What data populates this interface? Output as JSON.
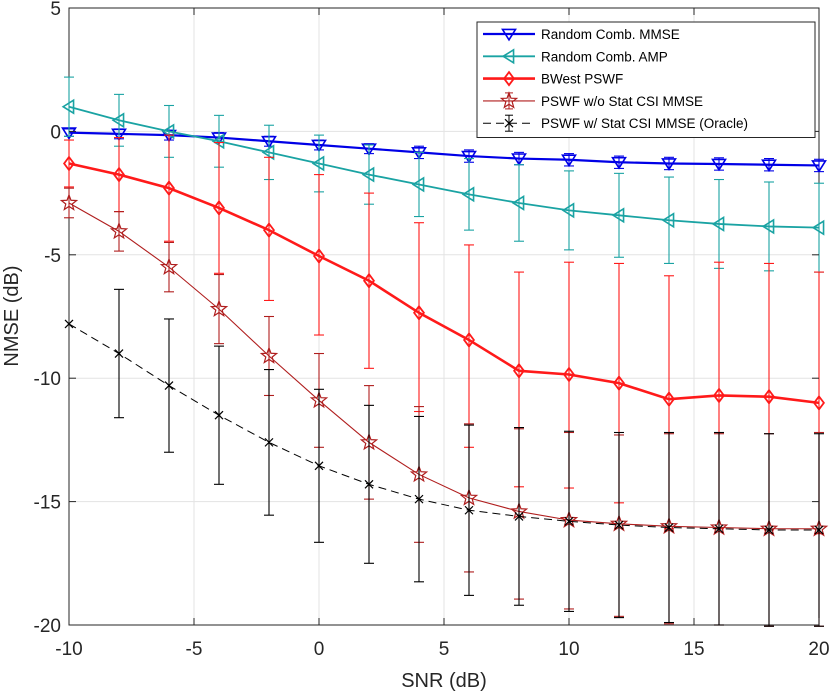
{
  "chart_data": {
    "type": "line",
    "title": "",
    "xlabel": "SNR (dB)",
    "ylabel": "NMSE (dB)",
    "xlim": [
      -10,
      20
    ],
    "ylim": [
      -20,
      5
    ],
    "xticks": [
      -10,
      -5,
      0,
      5,
      10,
      15,
      20
    ],
    "yticks": [
      -20,
      -15,
      -10,
      -5,
      0,
      5
    ],
    "grid": true,
    "legend_position": "top-right",
    "x": [
      -10,
      -8,
      -6,
      -4,
      -2,
      0,
      2,
      4,
      6,
      8,
      10,
      12,
      14,
      16,
      18,
      20
    ],
    "series": [
      {
        "name": "Random Comb. MMSE",
        "color": "#0000e6",
        "marker": "triangle-down",
        "line_style": "solid",
        "values": [
          -0.05,
          -0.1,
          -0.15,
          -0.25,
          -0.4,
          -0.55,
          -0.7,
          -0.85,
          -1.0,
          -1.1,
          -1.15,
          -1.25,
          -1.3,
          -1.32,
          -1.35,
          -1.38
        ],
        "err_low": [
          0.15,
          0.2,
          0.2,
          0.2,
          0.2,
          0.2,
          0.2,
          0.25,
          0.25,
          0.25,
          0.25,
          0.25,
          0.25,
          0.25,
          0.25,
          0.25
        ],
        "err_high": [
          0.15,
          0.2,
          0.2,
          0.2,
          0.2,
          0.2,
          0.2,
          0.25,
          0.25,
          0.25,
          0.25,
          0.25,
          0.25,
          0.25,
          0.25,
          0.25
        ]
      },
      {
        "name": "Random Comb. AMP",
        "color": "#1aa3a3",
        "marker": "triangle-left",
        "line_style": "solid",
        "values": [
          1.0,
          0.45,
          0.0,
          -0.4,
          -0.85,
          -1.3,
          -1.75,
          -2.15,
          -2.55,
          -2.9,
          -3.2,
          -3.4,
          -3.6,
          -3.75,
          -3.85,
          -3.9
        ],
        "err_low": [
          1.2,
          1.05,
          1.05,
          1.05,
          1.1,
          1.15,
          1.2,
          1.3,
          1.45,
          1.55,
          1.6,
          1.7,
          1.75,
          1.8,
          1.8,
          1.8
        ],
        "err_high": [
          1.2,
          1.05,
          1.05,
          1.05,
          1.1,
          1.15,
          1.2,
          1.3,
          1.45,
          1.55,
          1.6,
          1.7,
          1.75,
          1.8,
          1.8,
          1.8
        ]
      },
      {
        "name": "BWest PSWF",
        "color": "#ff1a1a",
        "marker": "diamond",
        "line_style": "solid",
        "values": [
          -1.3,
          -1.75,
          -2.3,
          -3.1,
          -4.0,
          -5.05,
          -6.05,
          -7.35,
          -8.45,
          -9.7,
          -9.85,
          -10.2,
          -10.85,
          -10.7,
          -10.75,
          -11.0
        ],
        "err_low": [
          0.95,
          1.5,
          2.15,
          2.65,
          2.85,
          3.2,
          3.55,
          4.0,
          4.35,
          4.7,
          4.6,
          4.85,
          5.25,
          5.4,
          5.4,
          5.3
        ],
        "err_high": [
          0.95,
          1.5,
          2.15,
          2.65,
          2.95,
          3.3,
          3.55,
          3.65,
          3.85,
          4.0,
          4.55,
          4.85,
          5.0,
          5.4,
          5.4,
          5.3
        ]
      },
      {
        "name": "PSWF w/o Stat CSI MMSE",
        "color": "#b01e1e",
        "marker": "star",
        "line_style": "solid",
        "values": [
          -2.9,
          -4.05,
          -5.5,
          -7.2,
          -9.1,
          -10.9,
          -12.6,
          -13.9,
          -14.85,
          -15.4,
          -15.75,
          -15.9,
          -16.0,
          -16.05,
          -16.1,
          -16.1
        ],
        "err_low": [
          0.6,
          0.8,
          1.0,
          1.4,
          1.6,
          1.9,
          2.3,
          2.75,
          3.0,
          3.55,
          3.6,
          3.75,
          3.95,
          3.95,
          3.95,
          3.95
        ],
        "err_high": [
          0.6,
          0.8,
          1.0,
          1.4,
          1.6,
          1.9,
          2.3,
          2.75,
          3.0,
          3.35,
          3.55,
          3.6,
          3.75,
          3.8,
          3.85,
          3.9
        ]
      },
      {
        "name": "PSWF w/ Stat CSI MMSE (Oracle)",
        "color": "#000000",
        "marker": "x",
        "line_style": "dashed",
        "values": [
          -7.8,
          -9.0,
          -10.3,
          -11.5,
          -12.6,
          -13.55,
          -14.3,
          -14.9,
          -15.35,
          -15.6,
          -15.8,
          -15.95,
          -16.05,
          -16.1,
          -16.15,
          -16.15
        ],
        "err_low": [
          0,
          2.6,
          2.7,
          2.8,
          2.95,
          3.1,
          3.2,
          3.35,
          3.45,
          3.6,
          3.65,
          3.75,
          3.85,
          3.9,
          3.9,
          3.9
        ],
        "err_high": [
          0,
          2.6,
          2.7,
          2.8,
          2.95,
          3.1,
          3.2,
          3.35,
          3.45,
          3.6,
          3.65,
          3.75,
          3.85,
          3.9,
          3.9,
          3.9
        ]
      }
    ]
  }
}
